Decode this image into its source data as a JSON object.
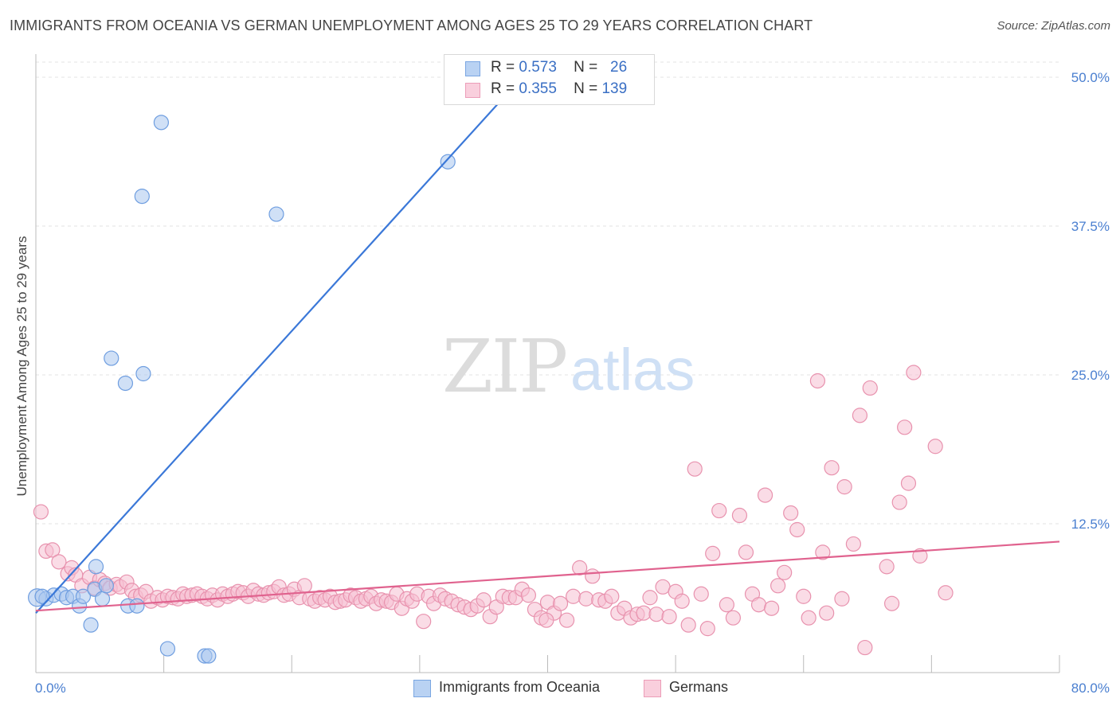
{
  "title": "IMMIGRANTS FROM OCEANIA VS GERMAN UNEMPLOYMENT AMONG AGES 25 TO 29 YEARS CORRELATION CHART",
  "source": "Source: ZipAtlas.com",
  "watermark": {
    "zip": "ZIP",
    "atlas": "atlas"
  },
  "legend": {
    "rows": [
      {
        "r_label": "R =",
        "r_value": "0.573",
        "n_label": "N =",
        "n_value": "26"
      },
      {
        "r_label": "R =",
        "r_value": "0.355",
        "n_label": "N =",
        "n_value": "139"
      }
    ]
  },
  "chart_data": {
    "type": "scatter",
    "title": "IMMIGRANTS FROM OCEANIA VS GERMAN UNEMPLOYMENT AMONG AGES 25 TO 29 YEARS CORRELATION CHART",
    "xlabel": "",
    "ylabel": "Unemployment Among Ages 25 to 29 years",
    "xlim": [
      0,
      80
    ],
    "ylim": [
      0,
      52
    ],
    "x_tick_labels": [
      {
        "value": 0,
        "label": "0.0%"
      },
      {
        "value": 80,
        "label": "80.0%"
      }
    ],
    "y_tick_labels": [
      {
        "value": 12.5,
        "label": "12.5%"
      },
      {
        "value": 25,
        "label": "25.0%"
      },
      {
        "value": 37.5,
        "label": "37.5%"
      },
      {
        "value": 50,
        "label": "50.0%"
      }
    ],
    "grid": "horizontal dashed",
    "legend_position": "top-center",
    "series": [
      {
        "name": "Immigrants from Oceania",
        "color": "#a9c6ef",
        "stroke": "#6f9ee0",
        "trend_color": "#3b78d8",
        "trend": {
          "x0": 0,
          "y0": 5.0,
          "x1": 38,
          "y1": 50.0
        },
        "points": [
          [
            0.1,
            6.3
          ],
          [
            0.8,
            6.2
          ],
          [
            1.4,
            6.5
          ],
          [
            2.0,
            6.6
          ],
          [
            2.4,
            6.3
          ],
          [
            2.9,
            6.4
          ],
          [
            3.4,
            5.6
          ],
          [
            3.7,
            6.4
          ],
          [
            4.3,
            4.0
          ],
          [
            4.6,
            7.0
          ],
          [
            4.7,
            8.9
          ],
          [
            5.2,
            6.2
          ],
          [
            5.5,
            7.3
          ],
          [
            5.9,
            26.4
          ],
          [
            7.0,
            24.3
          ],
          [
            7.2,
            5.6
          ],
          [
            7.9,
            5.6
          ],
          [
            8.3,
            40.0
          ],
          [
            8.4,
            25.1
          ],
          [
            9.8,
            46.2
          ],
          [
            10.3,
            2.0
          ],
          [
            13.2,
            1.4
          ],
          [
            13.5,
            1.4
          ],
          [
            18.8,
            38.5
          ],
          [
            32.2,
            42.9
          ],
          [
            0.5,
            6.4
          ]
        ]
      },
      {
        "name": "Germans",
        "color": "#f6bfd1",
        "stroke": "#e892ae",
        "trend_color": "#e0628e",
        "trend": {
          "x0": 0,
          "y0": 5.2,
          "x1": 80,
          "y1": 11.0
        },
        "points": [
          [
            0.4,
            13.5
          ],
          [
            0.8,
            10.2
          ],
          [
            1.3,
            10.3
          ],
          [
            1.8,
            9.3
          ],
          [
            2.5,
            8.3
          ],
          [
            2.8,
            8.8
          ],
          [
            3.1,
            8.2
          ],
          [
            3.6,
            7.3
          ],
          [
            4.2,
            8.0
          ],
          [
            4.6,
            7.1
          ],
          [
            5.0,
            7.8
          ],
          [
            5.4,
            7.5
          ],
          [
            5.8,
            7.1
          ],
          [
            6.3,
            7.4
          ],
          [
            6.6,
            7.2
          ],
          [
            7.1,
            7.6
          ],
          [
            7.5,
            6.9
          ],
          [
            7.8,
            6.4
          ],
          [
            8.2,
            6.5
          ],
          [
            8.6,
            6.8
          ],
          [
            9.0,
            6.0
          ],
          [
            9.5,
            6.3
          ],
          [
            9.9,
            6.1
          ],
          [
            10.3,
            6.4
          ],
          [
            10.7,
            6.3
          ],
          [
            11.1,
            6.2
          ],
          [
            11.5,
            6.6
          ],
          [
            11.8,
            6.4
          ],
          [
            12.2,
            6.5
          ],
          [
            12.6,
            6.6
          ],
          [
            13.0,
            6.4
          ],
          [
            13.4,
            6.2
          ],
          [
            13.8,
            6.5
          ],
          [
            14.2,
            6.1
          ],
          [
            14.6,
            6.6
          ],
          [
            15.0,
            6.4
          ],
          [
            15.4,
            6.6
          ],
          [
            15.8,
            6.8
          ],
          [
            16.2,
            6.7
          ],
          [
            16.6,
            6.4
          ],
          [
            17.0,
            6.9
          ],
          [
            17.4,
            6.6
          ],
          [
            17.8,
            6.5
          ],
          [
            18.2,
            6.7
          ],
          [
            18.6,
            6.8
          ],
          [
            19.0,
            7.2
          ],
          [
            19.4,
            6.5
          ],
          [
            19.8,
            6.6
          ],
          [
            20.2,
            7.0
          ],
          [
            20.6,
            6.3
          ],
          [
            21.0,
            7.3
          ],
          [
            21.4,
            6.2
          ],
          [
            21.8,
            6.0
          ],
          [
            22.2,
            6.3
          ],
          [
            22.6,
            6.1
          ],
          [
            23.0,
            6.4
          ],
          [
            23.4,
            5.9
          ],
          [
            23.8,
            6.0
          ],
          [
            24.2,
            6.1
          ],
          [
            24.6,
            6.5
          ],
          [
            25.0,
            6.3
          ],
          [
            25.4,
            6.0
          ],
          [
            25.8,
            6.2
          ],
          [
            26.2,
            6.4
          ],
          [
            26.6,
            5.8
          ],
          [
            27.0,
            6.1
          ],
          [
            27.4,
            6.0
          ],
          [
            27.8,
            5.9
          ],
          [
            28.2,
            6.6
          ],
          [
            28.6,
            5.4
          ],
          [
            29.0,
            6.2
          ],
          [
            29.4,
            6.0
          ],
          [
            29.8,
            6.6
          ],
          [
            30.3,
            4.3
          ],
          [
            30.7,
            6.4
          ],
          [
            31.1,
            5.8
          ],
          [
            31.6,
            6.5
          ],
          [
            32.0,
            6.2
          ],
          [
            32.5,
            6.0
          ],
          [
            33.0,
            5.7
          ],
          [
            33.5,
            5.5
          ],
          [
            34.0,
            5.3
          ],
          [
            34.5,
            5.6
          ],
          [
            35.0,
            6.1
          ],
          [
            35.5,
            4.7
          ],
          [
            36.0,
            5.5
          ],
          [
            36.5,
            6.4
          ],
          [
            37.0,
            6.3
          ],
          [
            37.5,
            6.3
          ],
          [
            38.0,
            7.0
          ],
          [
            38.5,
            6.5
          ],
          [
            39.0,
            5.3
          ],
          [
            39.5,
            4.6
          ],
          [
            40.0,
            5.9
          ],
          [
            40.5,
            5.0
          ],
          [
            41.0,
            5.8
          ],
          [
            41.5,
            4.4
          ],
          [
            42.0,
            6.4
          ],
          [
            42.5,
            8.8
          ],
          [
            43.0,
            6.2
          ],
          [
            43.5,
            8.1
          ],
          [
            44.0,
            6.1
          ],
          [
            44.5,
            6.0
          ],
          [
            45.0,
            6.4
          ],
          [
            45.5,
            5.0
          ],
          [
            46.0,
            5.4
          ],
          [
            46.5,
            4.6
          ],
          [
            47.0,
            4.9
          ],
          [
            47.5,
            5.0
          ],
          [
            48.0,
            6.3
          ],
          [
            48.5,
            4.9
          ],
          [
            49.0,
            7.2
          ],
          [
            49.5,
            4.7
          ],
          [
            50.0,
            6.8
          ],
          [
            50.5,
            6.0
          ],
          [
            51.0,
            4.0
          ],
          [
            51.5,
            17.1
          ],
          [
            52.0,
            6.6
          ],
          [
            52.5,
            3.7
          ],
          [
            52.9,
            10.0
          ],
          [
            53.4,
            13.6
          ],
          [
            54.0,
            5.7
          ],
          [
            54.5,
            4.6
          ],
          [
            55.0,
            13.2
          ],
          [
            55.5,
            10.1
          ],
          [
            56.0,
            6.6
          ],
          [
            56.5,
            5.7
          ],
          [
            57.0,
            14.9
          ],
          [
            57.5,
            5.4
          ],
          [
            58.0,
            7.3
          ],
          [
            58.5,
            8.4
          ],
          [
            59.0,
            13.4
          ],
          [
            59.5,
            12.0
          ],
          [
            60.0,
            6.4
          ],
          [
            60.4,
            4.6
          ],
          [
            61.1,
            24.5
          ],
          [
            61.5,
            10.1
          ],
          [
            62.2,
            17.2
          ],
          [
            63.2,
            15.6
          ],
          [
            63.9,
            10.8
          ],
          [
            64.4,
            21.6
          ],
          [
            64.8,
            2.1
          ],
          [
            65.2,
            23.9
          ],
          [
            66.5,
            8.9
          ],
          [
            66.9,
            5.8
          ],
          [
            67.5,
            14.3
          ],
          [
            67.9,
            20.6
          ],
          [
            68.2,
            15.9
          ],
          [
            68.6,
            25.2
          ],
          [
            69.1,
            9.8
          ],
          [
            70.3,
            19.0
          ],
          [
            71.1,
            6.7
          ],
          [
            39.9,
            4.4
          ],
          [
            63.0,
            6.2
          ],
          [
            61.8,
            5.0
          ]
        ]
      }
    ]
  },
  "bottom_legend": [
    {
      "label": "Immigrants from Oceania"
    },
    {
      "label": "Germans"
    }
  ]
}
